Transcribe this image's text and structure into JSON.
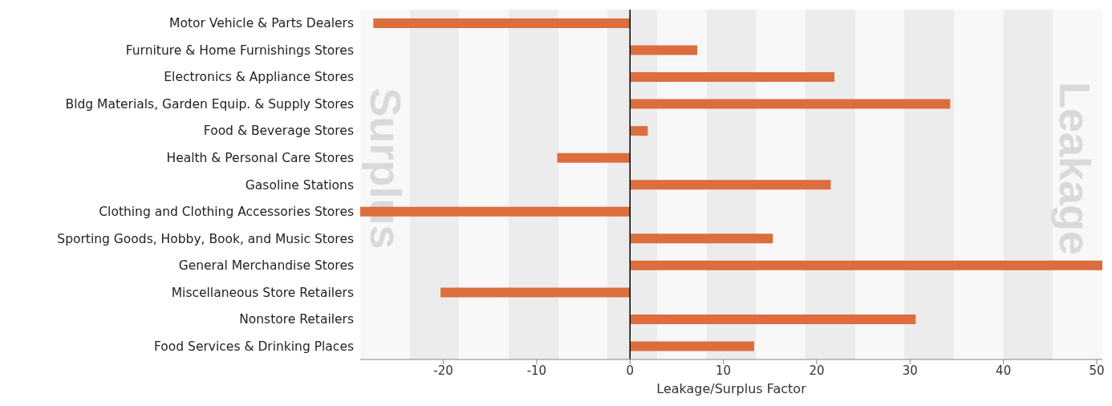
{
  "chart_data": {
    "type": "bar",
    "orientation": "horizontal",
    "xlabel": "Leakage/Surplus Factor",
    "categories": [
      "Motor Vehicle & Parts Dealers",
      "Furniture & Home Furnishings Stores",
      "Electronics & Appliance Stores",
      "Bldg Materials, Garden Equip. & Supply Stores",
      "Food & Beverage Stores",
      "Health & Personal Care Stores",
      "Gasoline Stations",
      "Clothing and Clothing Accessories Stores",
      "Sporting Goods, Hobby, Book, and Music Stores",
      "General Merchandise Stores",
      "Miscellaneous Store Retailers",
      "Nonstore Retailers",
      "Food Services & Drinking Places"
    ],
    "values": [
      -27.5,
      7.2,
      21.9,
      34.3,
      1.9,
      -7.8,
      21.5,
      -28.9,
      15.3,
      50.6,
      -20.3,
      30.6,
      13.3
    ],
    "color": "#dc6d3d",
    "xlim": [
      -28.9,
      50.6
    ],
    "xticks": [
      -20,
      -10,
      0,
      10,
      20,
      30,
      40,
      50
    ],
    "grid": false,
    "legend": false,
    "ref_lines": [
      {
        "axis": "x",
        "value": 0,
        "color": "#000000"
      }
    ],
    "annotations": [
      "Surplus",
      "Leakage"
    ]
  }
}
